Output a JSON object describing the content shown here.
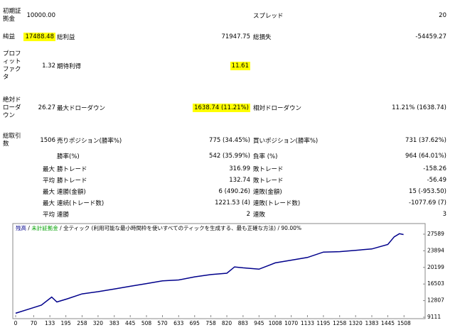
{
  "report": {
    "rows": [
      {
        "label": "初期証拠金",
        "value": "10000.00",
        "label3": "スプレッド",
        "value3": "20"
      },
      {
        "label": "純益",
        "value": {
          "text": "17488.48",
          "highlight": true
        },
        "label2": "総利益",
        "value2": "71947.75",
        "label3": "総損失",
        "value3": "-54459.27"
      },
      {
        "label": "プロフィットファクタ",
        "value": "1.32",
        "label2": "期待利得",
        "value2": {
          "text": "11.61",
          "highlight": true
        }
      },
      {
        "label": "絶対ドローダウン",
        "value": "26.27",
        "label2": "最大ドローダウン",
        "value2": {
          "text": "1638.74 (11.21%)",
          "highlight": true
        },
        "label3": "相対ドローダウン",
        "value3": "11.21% (1638.74)"
      },
      {
        "label": "総取引数",
        "value": "1506",
        "label2": "売りポジション(勝率%)",
        "value2": "775 (34.45%)",
        "label3": "買いポジション(勝率%)",
        "value3": "731 (37.62%)"
      },
      {
        "label2": "勝率(%)",
        "value2": "542 (35.99%)",
        "label3": "負率 (%)",
        "value3": "964 (64.01%)"
      },
      {
        "sub": "最大",
        "label2": "勝トレード",
        "value2": "316.99",
        "label3": "敗トレード",
        "value3": "-158.26"
      },
      {
        "sub": "平均",
        "label2": "勝トレード",
        "value2": "132.74",
        "label3": "敗トレード",
        "value3": "-56.49"
      },
      {
        "sub": "最大",
        "label2": "連勝(金額)",
        "value2": "6 (490.26)",
        "label3": "連敗(金額)",
        "value3": "15 (-953.50)"
      },
      {
        "sub": "最大",
        "label2": "連続(トレード数)",
        "value2": "1221.53 (4)",
        "label3": "連敗(トレード数)",
        "value3": "-1077.69 (7)"
      },
      {
        "sub": "平均",
        "label2": "連勝",
        "value2": "2",
        "label3": "連敗",
        "value3": "3"
      }
    ]
  },
  "chart_data": {
    "type": "line",
    "series": [
      {
        "name": "残高",
        "color": "#00008b",
        "values": [
          10000,
          10900,
          11800,
          13600,
          12500,
          13200,
          14300,
          14800,
          15400,
          16000,
          16600,
          17200,
          17400,
          18100,
          18600,
          18900,
          20300,
          20100,
          19800,
          21200,
          21800,
          22400,
          23600,
          23700,
          24000,
          24300,
          25300,
          27000,
          27700,
          27500
        ]
      }
    ],
    "x": [
      0,
      50,
      100,
      140,
      160,
      200,
      258,
      320,
      383,
      445,
      508,
      570,
      633,
      695,
      758,
      820,
      850,
      883,
      945,
      1008,
      1070,
      1133,
      1195,
      1258,
      1320,
      1383,
      1445,
      1470,
      1490,
      1506
    ],
    "legend_extra": [
      {
        "text": "未計証拠金",
        "color": "#00a000"
      }
    ],
    "separator": " / ",
    "mode_text": "全ティック (利用可能な最小時間枠を使いすべてのティックを生成する、最も正確な方法)",
    "quality": "90.00%",
    "xlim": [
      0,
      1590
    ],
    "xticks": [
      0,
      70,
      133,
      195,
      258,
      320,
      383,
      445,
      508,
      570,
      633,
      695,
      758,
      820,
      883,
      945,
      1008,
      1070,
      1133,
      1195,
      1258,
      1320,
      1383,
      1445,
      1508
    ],
    "ylim": [
      9111,
      29480
    ],
    "yticks": [
      9111,
      12807,
      16503,
      20199,
      23894,
      27589
    ]
  }
}
